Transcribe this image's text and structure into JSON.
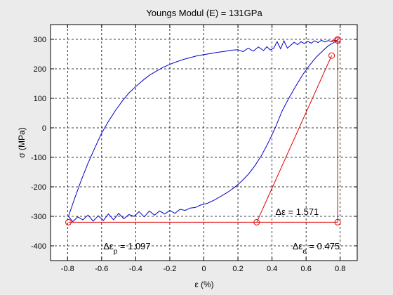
{
  "chart_data": {
    "type": "line",
    "title": "Youngs Modul (E) = 131GPa",
    "xlabel": "ε (%)",
    "ylabel": "σ (MPa)",
    "xlim": [
      -0.9,
      0.9
    ],
    "ylim": [
      -450,
      350
    ],
    "xticks": [
      -0.8,
      -0.6,
      -0.4,
      -0.2,
      0,
      0.2,
      0.4,
      0.6,
      0.8
    ],
    "xtick_labels": [
      "-0.8",
      "-0.6",
      "-0.4",
      "-0.2",
      "0",
      "0.2",
      "0.4",
      "0.6",
      "0.8"
    ],
    "yticks": [
      -400,
      -300,
      -200,
      -100,
      0,
      100,
      200,
      300
    ],
    "ytick_labels": [
      "-400",
      "-300",
      "-200",
      "-100",
      "0",
      "100",
      "200",
      "300"
    ],
    "grid": "dashed",
    "colors": {
      "hysteresis": "#0000c8",
      "construction": "#e00000",
      "background": "#ebebeb",
      "axes": "#ffffff"
    },
    "series": [
      {
        "role": "upper-branch",
        "x": [
          -0.795,
          -0.76,
          -0.72,
          -0.68,
          -0.64,
          -0.6,
          -0.56,
          -0.52,
          -0.48,
          -0.44,
          -0.4,
          -0.36,
          -0.32,
          -0.28,
          -0.24,
          -0.2,
          -0.16,
          -0.12,
          -0.08,
          -0.04,
          0,
          0.04,
          0.08,
          0.12,
          0.16,
          0.2,
          0.23,
          0.26,
          0.29,
          0.32,
          0.35,
          0.37,
          0.39,
          0.41,
          0.43,
          0.45,
          0.47,
          0.49,
          0.51,
          0.53,
          0.55,
          0.57,
          0.59,
          0.61,
          0.63,
          0.65,
          0.67,
          0.69,
          0.71,
          0.73,
          0.75,
          0.77,
          0.785
        ],
        "y": [
          -300,
          -242,
          -178,
          -120,
          -68,
          -18,
          22,
          58,
          90,
          118,
          140,
          160,
          178,
          192,
          205,
          215,
          224,
          232,
          238,
          244,
          248,
          252,
          256,
          259,
          263,
          265,
          258,
          270,
          260,
          274,
          262,
          275,
          264,
          270,
          292,
          268,
          295,
          270,
          280,
          290,
          282,
          292,
          286,
          293,
          287,
          295,
          289,
          297,
          291,
          296,
          292,
          297,
          296
        ]
      },
      {
        "role": "lower-branch",
        "x": [
          -0.795,
          -0.77,
          -0.74,
          -0.71,
          -0.68,
          -0.65,
          -0.62,
          -0.59,
          -0.56,
          -0.53,
          -0.5,
          -0.47,
          -0.44,
          -0.41,
          -0.38,
          -0.35,
          -0.32,
          -0.29,
          -0.26,
          -0.23,
          -0.2,
          -0.17,
          -0.14,
          -0.11,
          -0.08,
          -0.05,
          -0.02,
          0.02,
          0.06,
          0.1,
          0.14,
          0.18,
          0.22,
          0.26,
          0.3,
          0.34,
          0.38,
          0.42,
          0.46,
          0.5,
          0.54,
          0.58,
          0.62,
          0.66,
          0.7,
          0.73,
          0.76,
          0.785
        ],
        "y": [
          -300,
          -318,
          -302,
          -312,
          -296,
          -316,
          -298,
          -314,
          -292,
          -312,
          -290,
          -308,
          -294,
          -300,
          -284,
          -302,
          -282,
          -296,
          -282,
          -292,
          -280,
          -290,
          -276,
          -280,
          -272,
          -270,
          -262,
          -256,
          -245,
          -232,
          -218,
          -202,
          -182,
          -158,
          -128,
          -92,
          -48,
          2,
          58,
          102,
          142,
          180,
          212,
          240,
          262,
          278,
          288,
          298
        ]
      },
      {
        "role": "elastic-line",
        "x": [
          0.31,
          0.75
        ],
        "y": [
          -320,
          245
        ]
      },
      {
        "role": "strain-baseline",
        "x": [
          -0.795,
          0.785
        ],
        "y": [
          -320,
          -320
        ]
      },
      {
        "role": "stress-vertical",
        "x": [
          0.785,
          0.785
        ],
        "y": [
          -320,
          296
        ]
      },
      {
        "role": "top-segment",
        "x": [
          0.75,
          0.785
        ],
        "y": [
          296,
          296
        ]
      }
    ],
    "markers": [
      {
        "x": -0.795,
        "y": -320
      },
      {
        "x": 0.31,
        "y": -320
      },
      {
        "x": 0.785,
        "y": -320
      },
      {
        "x": 0.75,
        "y": 245
      },
      {
        "x": 0.785,
        "y": 296
      },
      {
        "x": 0.785,
        "y": 300
      }
    ],
    "annotations": [
      {
        "id": "delta-eps-total",
        "symbol": "Δε",
        "sub": "",
        "text": " = 1.571",
        "x": 0.42,
        "y": -295
      },
      {
        "id": "delta-eps-p",
        "symbol": "Δε",
        "sub": "p",
        "text": " = 1.097",
        "x": -0.59,
        "y": -412
      },
      {
        "id": "delta-eps-e",
        "symbol": "Δε",
        "sub": "e",
        "text": " = 0.475",
        "x": 0.52,
        "y": -412
      }
    ]
  }
}
